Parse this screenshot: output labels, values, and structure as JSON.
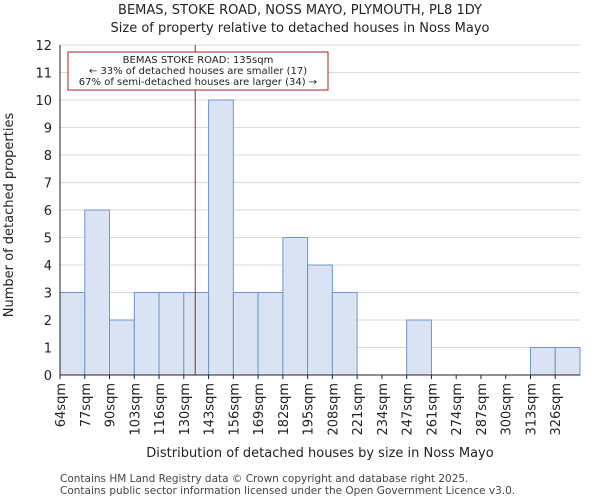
{
  "chart_data": {
    "type": "bar",
    "title": "BEMAS, STOKE ROAD, NOSS MAYO, PLYMOUTH, PL8 1DY",
    "subtitle": "Size of property relative to detached houses in Noss Mayo",
    "xlabel": "Distribution of detached houses by size in Noss Mayo",
    "ylabel": "Number of detached properties",
    "categories": [
      "64sqm",
      "77sqm",
      "90sqm",
      "103sqm",
      "116sqm",
      "130sqm",
      "143sqm",
      "156sqm",
      "169sqm",
      "182sqm",
      "195sqm",
      "208sqm",
      "221sqm",
      "234sqm",
      "247sqm",
      "261sqm",
      "274sqm",
      "287sqm",
      "300sqm",
      "313sqm",
      "326sqm"
    ],
    "values": [
      3,
      6,
      2,
      3,
      3,
      3,
      10,
      3,
      3,
      5,
      4,
      3,
      0,
      0,
      2,
      0,
      0,
      0,
      0,
      1,
      1
    ],
    "ylim": [
      0,
      12
    ],
    "yticks": [
      0,
      1,
      2,
      3,
      4,
      5,
      6,
      7,
      8,
      9,
      10,
      11,
      12
    ],
    "grid": true,
    "bar_color": "#dae3f3",
    "bar_edge_color": "#6f96c8",
    "marker": {
      "value_sqm": 135,
      "color": "#aa2222",
      "label_line1": "BEMAS STOKE ROAD: 135sqm",
      "label_line2": "← 33% of detached houses are smaller (17)",
      "label_line3": "67% of semi-detached houses are larger (34) →"
    }
  },
  "footer": {
    "line1": "Contains HM Land Registry data © Crown copyright and database right 2025.",
    "line2": "Contains public sector information licensed under the Open Government Licence v3.0."
  }
}
